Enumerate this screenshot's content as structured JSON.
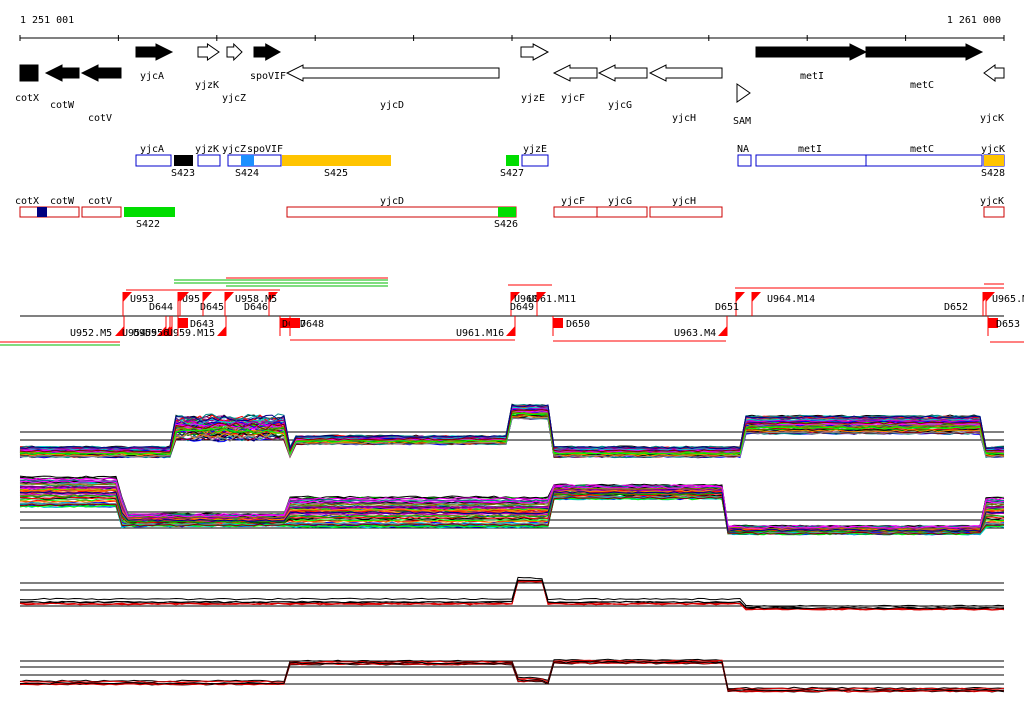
{
  "ruler": {
    "start_label": "1 251 001",
    "end_label": "1 261 000"
  },
  "genes_top": [
    {
      "label": "cotX",
      "strand": "-",
      "fill": "#000000"
    },
    {
      "label": "cotW",
      "strand": "-",
      "fill": "#000000"
    },
    {
      "label": "cotV",
      "strand": "-",
      "fill": "#000000"
    },
    {
      "label": "yjcA",
      "strand": "+",
      "fill": "#000000"
    },
    {
      "label": "yjzK",
      "strand": "+",
      "fill": "#ffffff"
    },
    {
      "label": "yjcZ",
      "strand": "+",
      "fill": "#ffffff"
    },
    {
      "label": "spoVIF",
      "strand": "+",
      "fill": "#000000"
    },
    {
      "label": "yjcD",
      "strand": "-",
      "fill": "#ffffff"
    },
    {
      "label": "yjzE",
      "strand": "+",
      "fill": "#ffffff"
    },
    {
      "label": "yjcF",
      "strand": "-",
      "fill": "#ffffff"
    },
    {
      "label": "yjcG",
      "strand": "-",
      "fill": "#ffffff"
    },
    {
      "label": "yjcH",
      "strand": "-",
      "fill": "#ffffff"
    },
    {
      "label": "SAM",
      "strand": "+",
      "fill": "#ffffff"
    },
    {
      "label": "metI",
      "strand": "+",
      "fill": "#000000"
    },
    {
      "label": "metC",
      "strand": "+",
      "fill": "#000000"
    },
    {
      "label": "yjcK",
      "strand": "-",
      "fill": "#ffffff"
    }
  ],
  "blue_track": {
    "labels": [
      "yjcA",
      "yjzK",
      "yjcZ",
      "spoVIF",
      "yjzE",
      "NA",
      "metI",
      "metC",
      "yjcK"
    ],
    "segments": [
      "S423",
      "S424",
      "S425",
      "S427",
      "S428"
    ]
  },
  "red_track": {
    "labels": [
      "cotX",
      "cotW",
      "cotV",
      "yjcD",
      "yjcF",
      "yjcG",
      "yjcH",
      "yjcK"
    ],
    "segments": [
      "S422",
      "S426"
    ]
  },
  "markers": {
    "up": [
      "U953",
      "U95",
      "D644",
      "D645",
      "D646",
      "U958.M5",
      "U960",
      "U961.M11",
      "D649",
      "D651",
      "U964.M14",
      "D652",
      "U965.M"
    ],
    "down": [
      "U952.M5",
      "U954",
      "U955",
      "U956",
      "U959.M15",
      "D643",
      "D647",
      "D648",
      "U961.M16",
      "D650",
      "U963.M4",
      "D653"
    ]
  },
  "colors": {
    "gene_outline": "#000000",
    "blue_outline": "#0000cc",
    "red_outline": "#cc0000",
    "orange_segment": "#ffc400",
    "green_segment": "#00dd00",
    "cyan_segment": "#1e90ff",
    "navy_segment": "#000080",
    "marker_red": "#ff0000",
    "profile_red": "#dd0000",
    "profile_black": "#000000"
  }
}
